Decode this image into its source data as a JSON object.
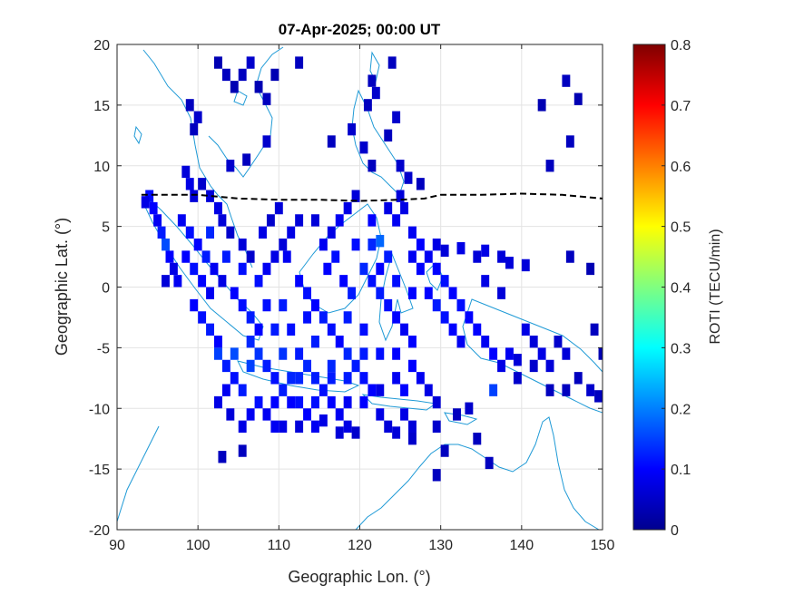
{
  "chart_data": {
    "type": "heatmap",
    "title": "07-Apr-2025; 00:00 UT",
    "xlabel": "Geographic Lon. (°)",
    "ylabel": "Geographic Lat. (°)",
    "xlim": [
      90,
      150
    ],
    "ylim": [
      -20,
      20
    ],
    "xticks": [
      "90",
      "100",
      "110",
      "120",
      "130",
      "140",
      "150"
    ],
    "yticks": [
      "20",
      "15",
      "10",
      "5",
      "0",
      "-5",
      "-10",
      "-15",
      "-20"
    ],
    "grid": true,
    "colorbar": {
      "label": "ROTI (TECU/min)",
      "colormap": "jet",
      "range": [
        0,
        0.8
      ],
      "ticks": [
        "0",
        "0.1",
        "0.2",
        "0.3",
        "0.4",
        "0.5",
        "0.6",
        "0.7",
        "0.8"
      ]
    },
    "colors": {
      "background": "#ffffff",
      "coastline": "#1f9ad6",
      "grid": "#e3e3e3",
      "equator_line": "#000000",
      "low": "#00008f",
      "high": "#7f0000"
    },
    "dip_equator": {
      "style": "dashed",
      "points": [
        [
          93,
          7.6
        ],
        [
          100,
          7.6
        ],
        [
          105,
          7.3
        ],
        [
          110,
          7.2
        ],
        [
          115,
          7.2
        ],
        [
          120,
          7.1
        ],
        [
          125,
          7.2
        ],
        [
          128,
          7.3
        ],
        [
          130,
          7.6
        ],
        [
          135,
          7.6
        ],
        [
          140,
          7.7
        ],
        [
          145,
          7.6
        ],
        [
          150,
          7.3
        ]
      ]
    },
    "cell_size_deg": [
      1.0,
      1.0
    ],
    "points": [
      [
        94,
        7.5,
        0.11
      ],
      [
        93.5,
        7.0,
        0.08
      ],
      [
        94.5,
        6.5,
        0.1
      ],
      [
        95,
        5.5,
        0.09
      ],
      [
        95.5,
        4.5,
        0.12
      ],
      [
        96,
        3.5,
        0.16
      ],
      [
        96.5,
        2.5,
        0.1
      ],
      [
        97,
        1.5,
        0.08
      ],
      [
        96,
        0.5,
        0.07
      ],
      [
        97.5,
        0.5,
        0.09
      ],
      [
        98.5,
        9.5,
        0.07
      ],
      [
        99,
        8.5,
        0.08
      ],
      [
        99.5,
        7.5,
        0.07
      ],
      [
        100.5,
        8.5,
        0.06
      ],
      [
        101.5,
        7.5,
        0.07
      ],
      [
        102.5,
        6.5,
        0.08
      ],
      [
        103,
        5.5,
        0.07
      ],
      [
        104,
        4.5,
        0.06
      ],
      [
        105.5,
        3.5,
        0.07
      ],
      [
        106.5,
        2.5,
        0.06
      ],
      [
        98,
        5.5,
        0.09
      ],
      [
        99,
        4.5,
        0.11
      ],
      [
        100,
        3.5,
        0.1
      ],
      [
        101,
        2.5,
        0.12
      ],
      [
        102,
        1.5,
        0.09
      ],
      [
        103,
        0.5,
        0.08
      ],
      [
        98.5,
        2.5,
        0.1
      ],
      [
        99.5,
        1.5,
        0.11
      ],
      [
        100.5,
        0.5,
        0.1
      ],
      [
        101.5,
        -0.5,
        0.09
      ],
      [
        99.5,
        -1.5,
        0.1
      ],
      [
        100.5,
        -2.5,
        0.11
      ],
      [
        101.5,
        -3.5,
        0.12
      ],
      [
        102.5,
        -4.5,
        0.1
      ],
      [
        102.5,
        -5.5,
        0.15
      ],
      [
        103.5,
        -6.5,
        0.12
      ],
      [
        104.5,
        -7.5,
        0.11
      ],
      [
        103.5,
        -8.5,
        0.09
      ],
      [
        102.5,
        -9.5,
        0.08
      ],
      [
        104,
        -10.5,
        0.07
      ],
      [
        104.5,
        -0.5,
        0.1
      ],
      [
        105.5,
        -1.5,
        0.11
      ],
      [
        106.5,
        -2.5,
        0.12
      ],
      [
        107.5,
        -3.5,
        0.1
      ],
      [
        106.5,
        -4.5,
        0.13
      ],
      [
        107.5,
        -5.5,
        0.14
      ],
      [
        108.5,
        -6.5,
        0.12
      ],
      [
        109.5,
        -7.5,
        0.11
      ],
      [
        110.5,
        -8.5,
        0.12
      ],
      [
        111.5,
        -9.5,
        0.1
      ],
      [
        107.5,
        0.5,
        0.11
      ],
      [
        108.5,
        1.5,
        0.09
      ],
      [
        109.5,
        2.5,
        0.08
      ],
      [
        110.5,
        3.5,
        0.07
      ],
      [
        111.5,
        4.5,
        0.08
      ],
      [
        112.5,
        5.5,
        0.07
      ],
      [
        108,
        4.5,
        0.08
      ],
      [
        109,
        5.5,
        0.06
      ],
      [
        110,
        6.5,
        0.07
      ],
      [
        111,
        2.5,
        0.09
      ],
      [
        112.5,
        0.5,
        0.1
      ],
      [
        113.5,
        -0.5,
        0.11
      ],
      [
        114.5,
        -1.5,
        0.1
      ],
      [
        115.5,
        -2.5,
        0.12
      ],
      [
        116.5,
        -3.5,
        0.11
      ],
      [
        117.5,
        -4.5,
        0.1
      ],
      [
        118.5,
        -5.5,
        0.13
      ],
      [
        119.5,
        -6.5,
        0.12
      ],
      [
        120.5,
        -7.5,
        0.11
      ],
      [
        121.5,
        -8.5,
        0.1
      ],
      [
        112.5,
        -5.5,
        0.12
      ],
      [
        113.5,
        -6.5,
        0.13
      ],
      [
        114.5,
        -7.5,
        0.12
      ],
      [
        115.5,
        -8.5,
        0.11
      ],
      [
        116.5,
        -9.5,
        0.1
      ],
      [
        117.5,
        -10.5,
        0.09
      ],
      [
        118.5,
        -11.5,
        0.08
      ],
      [
        113.5,
        -10.5,
        0.1
      ],
      [
        110.5,
        -11.5,
        0.08
      ],
      [
        108.5,
        -10.5,
        0.09
      ],
      [
        115.5,
        3.5,
        0.09
      ],
      [
        116.5,
        4.5,
        0.08
      ],
      [
        117.5,
        5.5,
        0.09
      ],
      [
        118.5,
        6.5,
        0.08
      ],
      [
        119.5,
        7.5,
        0.07
      ],
      [
        114.5,
        5.5,
        0.07
      ],
      [
        116,
        1.5,
        0.1
      ],
      [
        117,
        2.5,
        0.11
      ],
      [
        118,
        0.5,
        0.1
      ],
      [
        119,
        -0.5,
        0.12
      ],
      [
        121.5,
        3.5,
        0.13
      ],
      [
        122.5,
        3.8,
        0.18
      ],
      [
        123.5,
        2.5,
        0.12
      ],
      [
        122.5,
        1.5,
        0.1
      ],
      [
        121.5,
        0.5,
        0.11
      ],
      [
        122.5,
        -0.5,
        0.12
      ],
      [
        123.5,
        -1.5,
        0.11
      ],
      [
        124.5,
        -2.5,
        0.1
      ],
      [
        125.5,
        -3.5,
        0.09
      ],
      [
        126.5,
        -4.5,
        0.1
      ],
      [
        124.5,
        5.5,
        0.09
      ],
      [
        125.5,
        6.5,
        0.08
      ],
      [
        126.5,
        4.5,
        0.09
      ],
      [
        127.5,
        3.5,
        0.1
      ],
      [
        128.5,
        2.5,
        0.09
      ],
      [
        129.5,
        1.5,
        0.1
      ],
      [
        130.5,
        0.5,
        0.11
      ],
      [
        131.5,
        -0.5,
        0.1
      ],
      [
        132.5,
        -1.5,
        0.11
      ],
      [
        133.5,
        -2.5,
        0.1
      ],
      [
        128.5,
        -0.5,
        0.1
      ],
      [
        129.5,
        -1.5,
        0.12
      ],
      [
        130.5,
        -2.5,
        0.11
      ],
      [
        131.5,
        -3.5,
        0.1
      ],
      [
        132.5,
        -4.5,
        0.09
      ],
      [
        134.5,
        -3.5,
        0.1
      ],
      [
        135.5,
        -4.5,
        0.09
      ],
      [
        136.5,
        -5.5,
        0.1
      ],
      [
        137.5,
        -6.5,
        0.08
      ],
      [
        138.5,
        -5.5,
        0.09
      ],
      [
        129.5,
        3.5,
        0.08
      ],
      [
        130.5,
        3.0,
        0.07
      ],
      [
        132.5,
        3.2,
        0.08
      ],
      [
        134.5,
        2.5,
        0.07
      ],
      [
        135.5,
        3.0,
        0.08
      ],
      [
        137.5,
        2.5,
        0.07
      ],
      [
        138.5,
        2.0,
        0.07
      ],
      [
        140.5,
        1.8,
        0.07
      ],
      [
        135.5,
        0.5,
        0.08
      ],
      [
        137.5,
        -0.5,
        0.07
      ],
      [
        126.5,
        -6.5,
        0.1
      ],
      [
        127.5,
        -7.5,
        0.09
      ],
      [
        128.5,
        -8.5,
        0.08
      ],
      [
        129.5,
        -9.5,
        0.07
      ],
      [
        124.5,
        -7.5,
        0.09
      ],
      [
        125.5,
        -8.5,
        0.1
      ],
      [
        122.5,
        -10.5,
        0.08
      ],
      [
        123.5,
        -11.5,
        0.07
      ],
      [
        125.5,
        -10.5,
        0.08
      ],
      [
        126.5,
        -11.5,
        0.07
      ],
      [
        140.5,
        -3.5,
        0.08
      ],
      [
        141.5,
        -4.5,
        0.07
      ],
      [
        142.5,
        -5.5,
        0.08
      ],
      [
        143.5,
        -6.5,
        0.07
      ],
      [
        144.5,
        -4.5,
        0.06
      ],
      [
        145.5,
        -5.5,
        0.07
      ],
      [
        139.5,
        -7.5,
        0.06
      ],
      [
        136.5,
        -8.5,
        0.15
      ],
      [
        139.5,
        -6.0,
        0.07
      ],
      [
        141.5,
        -6.5,
        0.06
      ],
      [
        102.5,
        18.5,
        0.04
      ],
      [
        103.5,
        17.5,
        0.05
      ],
      [
        104.5,
        16.5,
        0.04
      ],
      [
        105.5,
        17.5,
        0.05
      ],
      [
        106.5,
        18.5,
        0.06
      ],
      [
        107.5,
        16.5,
        0.04
      ],
      [
        108.5,
        15.5,
        0.05
      ],
      [
        109.5,
        17.5,
        0.04
      ],
      [
        112.5,
        18.5,
        0.05
      ],
      [
        108.5,
        12.0,
        0.06
      ],
      [
        99,
        15.0,
        0.05
      ],
      [
        100,
        14.0,
        0.06
      ],
      [
        99.5,
        13.0,
        0.05
      ],
      [
        104,
        10.0,
        0.06
      ],
      [
        106,
        10.5,
        0.05
      ],
      [
        116.5,
        12.0,
        0.05
      ],
      [
        119,
        13.0,
        0.06
      ],
      [
        121,
        15.0,
        0.05
      ],
      [
        120.5,
        11.5,
        0.06
      ],
      [
        121.5,
        17.0,
        0.05
      ],
      [
        122,
        16.0,
        0.06
      ],
      [
        124,
        18.5,
        0.05
      ],
      [
        124.5,
        14.0,
        0.06
      ],
      [
        123.5,
        12.5,
        0.05
      ],
      [
        125,
        10.0,
        0.06
      ],
      [
        121.5,
        10.0,
        0.05
      ],
      [
        126,
        9.0,
        0.06
      ],
      [
        127.5,
        8.5,
        0.05
      ],
      [
        125,
        7.5,
        0.07
      ],
      [
        123.5,
        6.5,
        0.08
      ],
      [
        142.5,
        15.0,
        0.04
      ],
      [
        145.5,
        17.0,
        0.05
      ],
      [
        147,
        15.5,
        0.04
      ],
      [
        146,
        12.0,
        0.05
      ],
      [
        143.5,
        10.0,
        0.05
      ],
      [
        148.5,
        1.5,
        0.04
      ],
      [
        146,
        2.5,
        0.05
      ],
      [
        149,
        -3.5,
        0.05
      ],
      [
        150,
        -5.5,
        0.04
      ],
      [
        147,
        -7.5,
        0.05
      ],
      [
        143.5,
        -8.5,
        0.05
      ],
      [
        145.5,
        -8.5,
        0.05
      ],
      [
        148.5,
        -8.5,
        0.06
      ],
      [
        149.5,
        -9.0,
        0.05
      ],
      [
        133.5,
        -10.0,
        0.06
      ],
      [
        132,
        -10.5,
        0.05
      ],
      [
        134.5,
        -12.5,
        0.05
      ],
      [
        136,
        -14.5,
        0.05
      ],
      [
        130.5,
        -13.5,
        0.05
      ],
      [
        129.5,
        -15.5,
        0.05
      ],
      [
        105.5,
        -13.5,
        0.05
      ],
      [
        103,
        -14.0,
        0.05
      ],
      [
        112.5,
        -11.5,
        0.07
      ],
      [
        115.5,
        -11.0,
        0.08
      ],
      [
        119.5,
        -12.0,
        0.06
      ],
      [
        124.5,
        -12.0,
        0.07
      ],
      [
        126.5,
        -12.5,
        0.06
      ],
      [
        129.5,
        -11.5,
        0.06
      ],
      [
        122.5,
        -8.5,
        0.08
      ],
      [
        118.5,
        -9.5,
        0.09
      ],
      [
        104.5,
        -5.5,
        0.16
      ],
      [
        106.5,
        -6.5,
        0.15
      ],
      [
        110.5,
        -5.5,
        0.14
      ],
      [
        112.5,
        -7.5,
        0.13
      ],
      [
        105.5,
        -8.5,
        0.12
      ],
      [
        107.5,
        -9.5,
        0.11
      ],
      [
        109.5,
        -9.5,
        0.1
      ],
      [
        111.5,
        -7.5,
        0.13
      ],
      [
        114.5,
        -4.5,
        0.12
      ],
      [
        116.5,
        -6.5,
        0.13
      ],
      [
        101.5,
        4.5,
        0.13
      ],
      [
        103.5,
        2.5,
        0.12
      ],
      [
        105.5,
        1.5,
        0.11
      ],
      [
        108.5,
        -1.5,
        0.11
      ],
      [
        110.5,
        -1.5,
        0.12
      ],
      [
        111.5,
        -3.5,
        0.11
      ],
      [
        109.5,
        -3.5,
        0.12
      ],
      [
        113.5,
        -2.5,
        0.11
      ],
      [
        118.5,
        -2.5,
        0.12
      ],
      [
        120.5,
        -3.5,
        0.11
      ],
      [
        120.5,
        -5.5,
        0.12
      ],
      [
        122.5,
        -5.5,
        0.11
      ],
      [
        124.5,
        -5.5,
        0.1
      ],
      [
        121.5,
        5.5,
        0.1
      ],
      [
        119.5,
        3.5,
        0.11
      ],
      [
        120.5,
        1.5,
        0.13
      ],
      [
        124.5,
        0.5,
        0.11
      ],
      [
        126.5,
        -0.5,
        0.1
      ],
      [
        127.5,
        1.5,
        0.1
      ],
      [
        126.5,
        2.5,
        0.09
      ],
      [
        118.5,
        -7.5,
        0.12
      ],
      [
        116.5,
        -7.5,
        0.12
      ],
      [
        114.5,
        -9.5,
        0.11
      ],
      [
        112.5,
        -9.5,
        0.11
      ],
      [
        120.5,
        -9.5,
        0.1
      ],
      [
        106.5,
        -10.5,
        0.09
      ],
      [
        105.5,
        -11.5,
        0.08
      ],
      [
        109.5,
        -11.5,
        0.09
      ],
      [
        114.5,
        -11.5,
        0.09
      ],
      [
        117.5,
        -12.0,
        0.07
      ]
    ]
  }
}
